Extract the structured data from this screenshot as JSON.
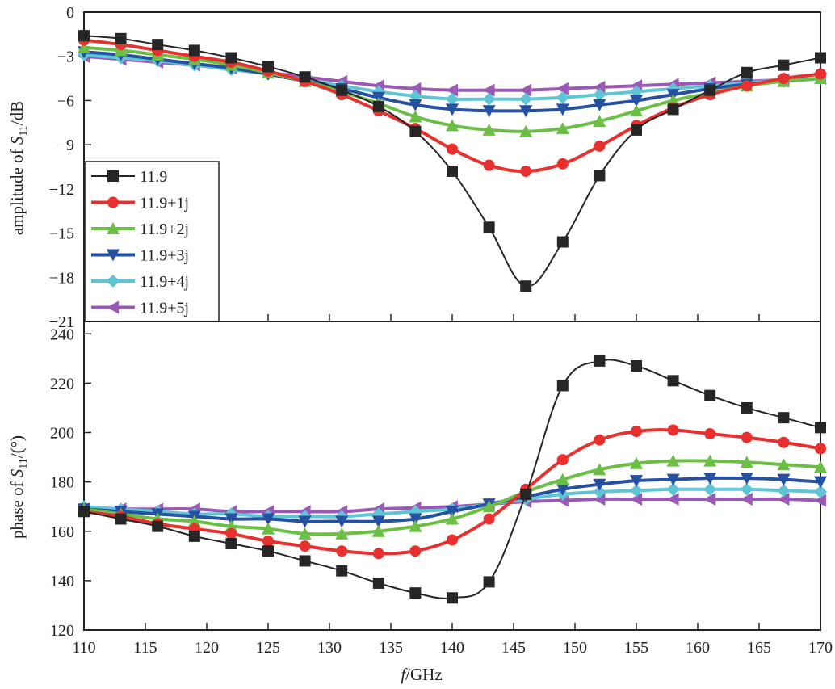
{
  "chart_data": [
    {
      "type": "line",
      "panel": "top",
      "ylabel_prefix": "amplitude of ",
      "ylabel_var": "S",
      "ylabel_sub": "11",
      "ylabel_suffix": "/dB",
      "xlim": [
        110,
        170
      ],
      "ylim": [
        -21,
        0
      ],
      "yticks": [
        0,
        -3,
        -6,
        -9,
        -12,
        -15,
        -18,
        -21
      ],
      "legend_position": "left",
      "x": [
        110,
        113,
        116,
        119,
        122,
        125,
        128,
        131,
        134,
        137,
        140,
        143,
        146,
        149,
        152,
        155,
        158,
        161,
        164,
        167,
        170
      ],
      "series": [
        {
          "name": "11.9",
          "color": "#262626",
          "marker": "square",
          "values": [
            -1.6,
            -1.8,
            -2.2,
            -2.6,
            -3.1,
            -3.7,
            -4.4,
            -5.3,
            -6.4,
            -8.1,
            -10.8,
            -14.6,
            -18.6,
            -15.6,
            -11.1,
            -8.0,
            -6.6,
            -5.3,
            -4.1,
            -3.6,
            -3.1
          ]
        },
        {
          "name": "11.9+1j",
          "color": "#e8312e",
          "marker": "circle",
          "values": [
            -1.9,
            -2.2,
            -2.6,
            -3.0,
            -3.4,
            -4.0,
            -4.7,
            -5.6,
            -6.7,
            -7.9,
            -9.3,
            -10.4,
            -10.8,
            -10.3,
            -9.1,
            -7.7,
            -6.5,
            -5.6,
            -5.0,
            -4.5,
            -4.2
          ]
        },
        {
          "name": "11.9+2j",
          "color": "#6bbf45",
          "marker": "triangle-up",
          "values": [
            -2.4,
            -2.6,
            -2.9,
            -3.2,
            -3.6,
            -4.1,
            -4.7,
            -5.4,
            -6.2,
            -7.1,
            -7.7,
            -8.0,
            -8.1,
            -7.9,
            -7.4,
            -6.7,
            -6.0,
            -5.5,
            -5.0,
            -4.7,
            -4.5
          ]
        },
        {
          "name": "11.9+3j",
          "color": "#2651a3",
          "marker": "triangle-down",
          "values": [
            -2.7,
            -2.9,
            -3.2,
            -3.5,
            -3.8,
            -4.2,
            -4.7,
            -5.2,
            -5.8,
            -6.3,
            -6.6,
            -6.7,
            -6.7,
            -6.6,
            -6.3,
            -6.0,
            -5.6,
            -5.2,
            -4.9,
            -4.7,
            -4.5
          ]
        },
        {
          "name": "11.9+4j",
          "color": "#5ec5d5",
          "marker": "diamond",
          "values": [
            -2.9,
            -3.1,
            -3.3,
            -3.6,
            -3.9,
            -4.2,
            -4.6,
            -5.0,
            -5.4,
            -5.7,
            -5.9,
            -5.9,
            -5.9,
            -5.8,
            -5.6,
            -5.4,
            -5.2,
            -5.0,
            -4.8,
            -4.6,
            -4.5
          ]
        },
        {
          "name": "11.9+5j",
          "color": "#9b59b6",
          "marker": "triangle-left",
          "values": [
            -3.0,
            -3.2,
            -3.4,
            -3.6,
            -3.8,
            -4.1,
            -4.4,
            -4.7,
            -5.0,
            -5.2,
            -5.3,
            -5.3,
            -5.3,
            -5.2,
            -5.1,
            -5.0,
            -4.9,
            -4.8,
            -4.7,
            -4.6,
            -4.5
          ]
        }
      ]
    },
    {
      "type": "line",
      "panel": "bottom",
      "ylabel_prefix": "phase of ",
      "ylabel_var": "S",
      "ylabel_sub": "11",
      "ylabel_suffix": "/(°)",
      "xlabel_var": "f",
      "xlabel_suffix": "/GHz",
      "xlim": [
        110,
        170
      ],
      "ylim": [
        120,
        245
      ],
      "yticks": [
        120,
        140,
        160,
        180,
        200,
        220,
        240
      ],
      "xticks": [
        110,
        115,
        120,
        125,
        130,
        135,
        140,
        145,
        150,
        155,
        160,
        165,
        170
      ],
      "x": [
        110,
        113,
        116,
        119,
        122,
        125,
        128,
        131,
        134,
        137,
        140,
        143,
        146,
        149,
        152,
        155,
        158,
        161,
        164,
        167,
        170
      ],
      "series": [
        {
          "name": "11.9",
          "color": "#262626",
          "marker": "square",
          "values": [
            168,
            165,
            162,
            158,
            155,
            152,
            148,
            144,
            139,
            135,
            133,
            139.5,
            175,
            219,
            229,
            227,
            221,
            215,
            210,
            206,
            202
          ]
        },
        {
          "name": "11.9+1j",
          "color": "#e8312e",
          "marker": "circle",
          "values": [
            168,
            166,
            163,
            161,
            159,
            156,
            154,
            152,
            151,
            152,
            156.5,
            165,
            177,
            189,
            197,
            200.5,
            201,
            199.5,
            198,
            196,
            193.5
          ]
        },
        {
          "name": "11.9+2j",
          "color": "#6bbf45",
          "marker": "triangle-up",
          "values": [
            169,
            167,
            165,
            164,
            162,
            161,
            159,
            159,
            160,
            162,
            165,
            170,
            176,
            181,
            185,
            187.5,
            188.5,
            188.5,
            188,
            187,
            186
          ]
        },
        {
          "name": "11.9+3j",
          "color": "#2651a3",
          "marker": "triangle-down",
          "values": [
            169,
            168,
            167,
            166,
            165,
            165,
            164,
            164,
            164,
            165,
            168,
            171,
            174,
            177,
            179,
            180.5,
            181,
            181.5,
            181.5,
            181,
            180
          ]
        },
        {
          "name": "11.9+4j",
          "color": "#5ec5d5",
          "marker": "diamond",
          "values": [
            170,
            169,
            168,
            167,
            167,
            166,
            166,
            166,
            167,
            168,
            169,
            171,
            173,
            175,
            176,
            176.5,
            177,
            177,
            177,
            176.5,
            176
          ]
        },
        {
          "name": "11.9+5j",
          "color": "#9b59b6",
          "marker": "triangle-left",
          "values": [
            169,
            169,
            169,
            169,
            168,
            168,
            168,
            168,
            169,
            169.5,
            170,
            171,
            172,
            172.5,
            173,
            173,
            173,
            173,
            173,
            173,
            172.5
          ]
        }
      ]
    }
  ]
}
